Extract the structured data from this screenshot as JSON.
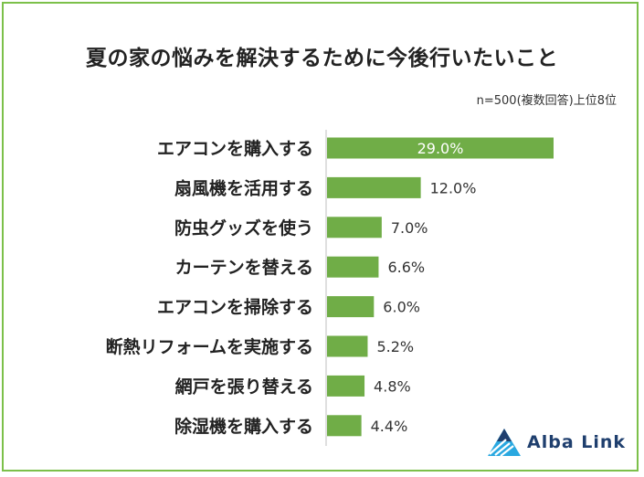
{
  "page": {
    "title": "夏の家の悩みを解決するために今後行いたいこと",
    "subtitle": "n=500(複数回答)上位8位",
    "brand": "Alba Link"
  },
  "colors": {
    "bar": "#70ad47",
    "frame": "#7cc04a",
    "brand_dark": "#1f3f6e",
    "brand_light": "#2aa8e0"
  },
  "chart_data": {
    "type": "bar",
    "orientation": "horizontal",
    "title": "夏の家の悩みを解決するために今後行いたいこと",
    "subtitle": "n=500(複数回答)上位8位",
    "categories": [
      "エアコンを購入する",
      "扇風機を活用する",
      "防虫グッズを使う",
      "カーテンを替える",
      "エアコンを掃除する",
      "断熱リフォームを実施する",
      "網戸を張り替える",
      "除湿機を購入する"
    ],
    "values": [
      29.0,
      12.0,
      7.0,
      6.6,
      6.0,
      5.2,
      4.8,
      4.4
    ],
    "value_labels": [
      "29.0%",
      "12.0%",
      "7.0%",
      "6.6%",
      "6.0%",
      "5.2%",
      "4.8%",
      "4.4%"
    ],
    "xlim": [
      0,
      29.0
    ],
    "grid": false,
    "legend": "none"
  }
}
